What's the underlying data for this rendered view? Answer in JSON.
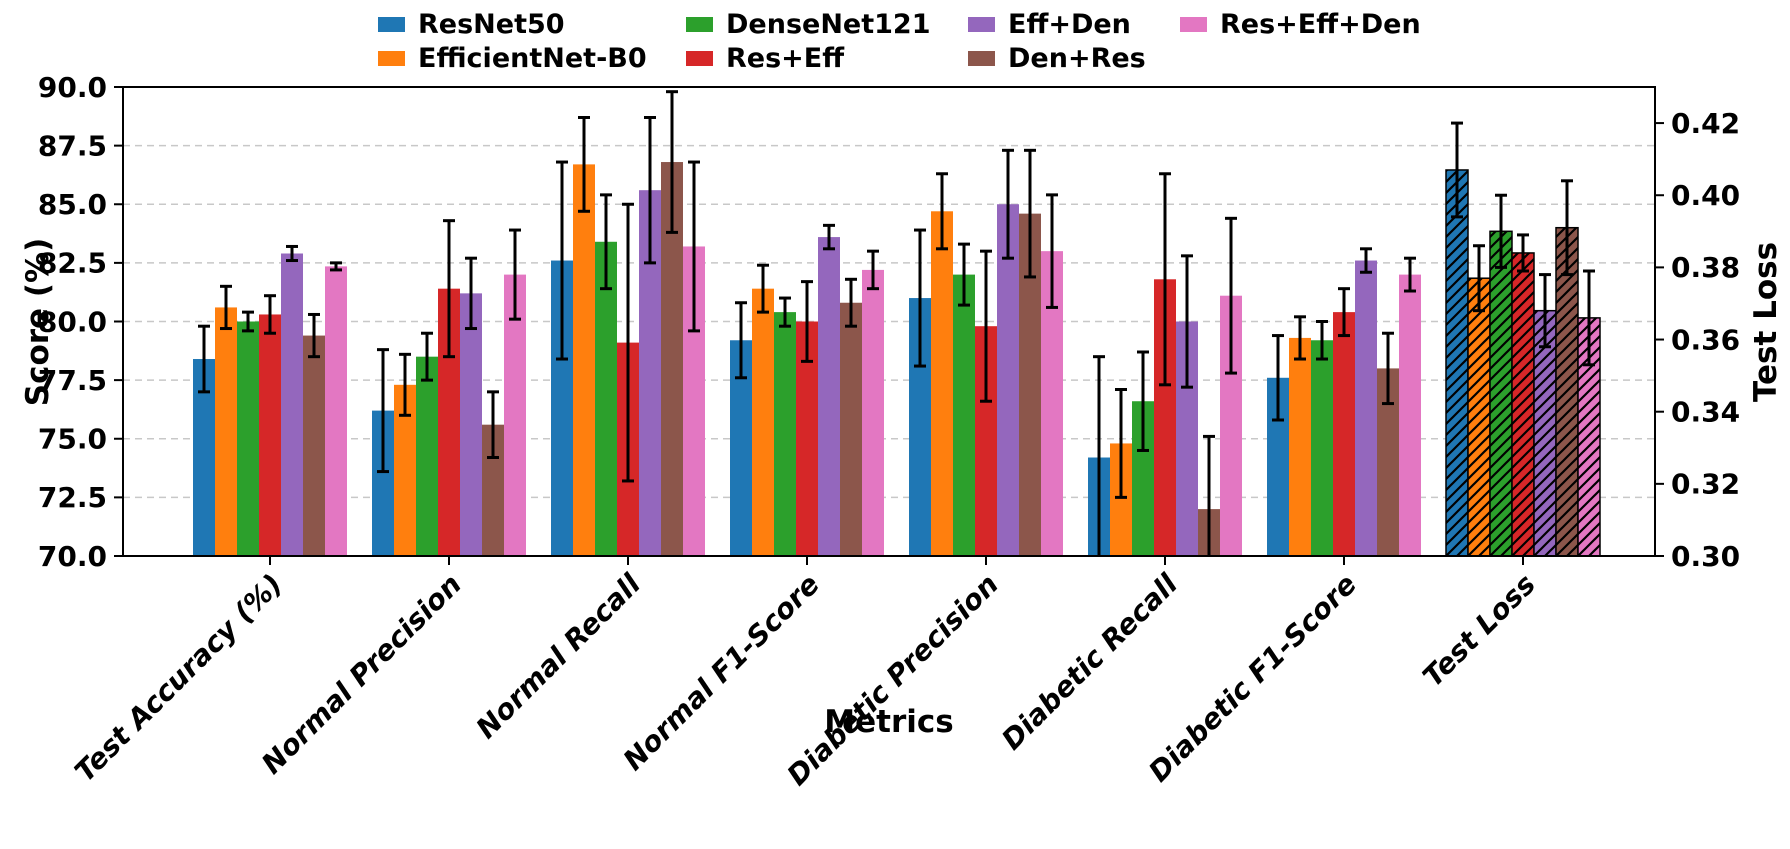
{
  "chart_data": {
    "type": "bar",
    "title": "",
    "xlabel": "Metrics",
    "ylabel_left": "Score (%)",
    "ylabel_right": "Test Loss",
    "ylim_left": [
      70.0,
      90.0
    ],
    "ylim_right": [
      0.3,
      0.43
    ],
    "yticks_left": [
      "70.0",
      "72.5",
      "75.0",
      "77.5",
      "80.0",
      "82.5",
      "85.0",
      "87.5",
      "90.0"
    ],
    "yticks_right": [
      "0.30",
      "0.32",
      "0.34",
      "0.36",
      "0.38",
      "0.40",
      "0.42"
    ],
    "grid": "horizontal dashed gray, behind bars",
    "legend_position": "top, 4 columns, 2 rows",
    "error_bars": "black, with caps, clipped at axis bottom",
    "loss_bar_style": "diagonal black hatch, black edge, plotted on right axis",
    "categories": [
      "Test Accuracy (%)",
      "Normal Precision",
      "Normal Recall",
      "Normal F1-Score",
      "Diabetic Precision",
      "Diabetic Recall",
      "Diabetic F1-Score",
      "Test Loss"
    ],
    "score_categories_count": 7,
    "series": [
      {
        "name": "ResNet50",
        "color": "#1f77b4",
        "scores": [
          78.4,
          76.2,
          82.6,
          79.2,
          81.0,
          74.2,
          77.6
        ],
        "score_errors": [
          1.4,
          2.6,
          4.2,
          1.6,
          2.9,
          4.3,
          1.8
        ],
        "test_loss": 0.407,
        "test_loss_error": 0.013
      },
      {
        "name": "EfficientNet-B0",
        "color": "#ff7f0e",
        "scores": [
          80.6,
          77.3,
          86.7,
          81.4,
          84.7,
          74.8,
          79.3
        ],
        "score_errors": [
          0.9,
          1.3,
          2.0,
          1.0,
          1.6,
          2.3,
          0.9
        ],
        "test_loss": 0.377,
        "test_loss_error": 0.009
      },
      {
        "name": "DenseNet121",
        "color": "#2ca02c",
        "scores": [
          80.0,
          78.5,
          83.4,
          80.4,
          82.0,
          76.6,
          79.2
        ],
        "score_errors": [
          0.4,
          1.0,
          2.0,
          0.6,
          1.3,
          2.1,
          0.8
        ],
        "test_loss": 0.39,
        "test_loss_error": 0.01
      },
      {
        "name": "Res+Eff",
        "color": "#d62728",
        "scores": [
          80.3,
          81.4,
          79.1,
          80.0,
          79.8,
          81.8,
          80.4
        ],
        "score_errors": [
          0.8,
          2.9,
          5.9,
          1.7,
          3.2,
          4.5,
          1.0
        ],
        "test_loss": 0.384,
        "test_loss_error": 0.005
      },
      {
        "name": "Eff+Den",
        "color": "#9467bd",
        "scores": [
          82.9,
          81.2,
          85.6,
          83.6,
          85.0,
          80.0,
          82.6
        ],
        "score_errors": [
          0.3,
          1.5,
          3.1,
          0.5,
          2.3,
          2.8,
          0.5
        ],
        "test_loss": 0.368,
        "test_loss_error": 0.01
      },
      {
        "name": "Den+Res",
        "color": "#8c564b",
        "scores": [
          79.4,
          75.6,
          86.8,
          80.8,
          84.6,
          72.0,
          78.0
        ],
        "score_errors": [
          0.9,
          1.4,
          3.0,
          1.0,
          2.7,
          3.1,
          1.5
        ],
        "test_loss": 0.391,
        "test_loss_error": 0.013
      },
      {
        "name": "Res+Eff+Den",
        "color": "#e377c2",
        "scores": [
          82.35,
          82.0,
          83.2,
          82.2,
          83.0,
          81.1,
          82.0
        ],
        "score_errors": [
          0.15,
          1.9,
          3.6,
          0.8,
          2.4,
          3.3,
          0.7
        ],
        "test_loss": 0.366,
        "test_loss_error": 0.013
      }
    ]
  }
}
